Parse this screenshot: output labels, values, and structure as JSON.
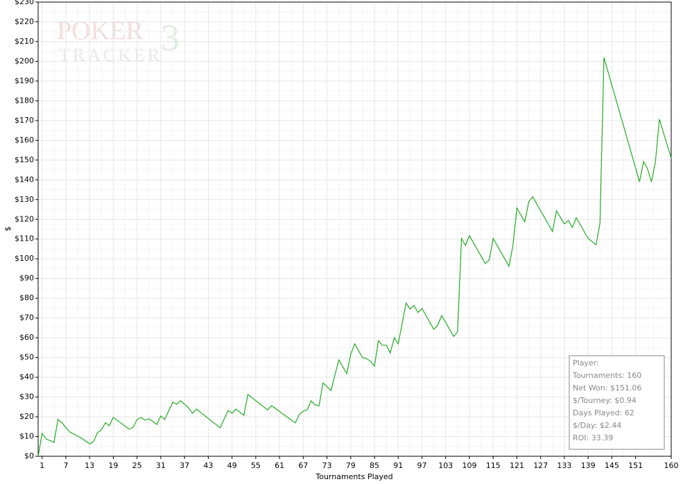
{
  "chart_data": {
    "type": "line",
    "xlabel": "Tournaments Played",
    "ylabel": "$",
    "logo": {
      "top": "POKER",
      "mark": "3",
      "bottom": "TRACKER"
    },
    "xlim": [
      0,
      160
    ],
    "ylim": [
      0,
      230
    ],
    "xticks": [
      1,
      7,
      13,
      19,
      25,
      31,
      37,
      43,
      49,
      55,
      61,
      67,
      73,
      79,
      85,
      91,
      97,
      103,
      109,
      115,
      121,
      127,
      133,
      139,
      145,
      151,
      160
    ],
    "yticks": [
      {
        "value": 0,
        "label": "$0"
      },
      {
        "value": 10,
        "label": "$10"
      },
      {
        "value": 20,
        "label": "$20"
      },
      {
        "value": 30,
        "label": "$30"
      },
      {
        "value": 40,
        "label": "$40"
      },
      {
        "value": 50,
        "label": "$50"
      },
      {
        "value": 60,
        "label": "$60"
      },
      {
        "value": 70,
        "label": "$70"
      },
      {
        "value": 80,
        "label": "$80"
      },
      {
        "value": 90,
        "label": "$90"
      },
      {
        "value": 100,
        "label": "$100"
      },
      {
        "value": 110,
        "label": "$110"
      },
      {
        "value": 120,
        "label": "$120"
      },
      {
        "value": 130,
        "label": "$130"
      },
      {
        "value": 140,
        "label": "$140"
      },
      {
        "value": 150,
        "label": "$150"
      },
      {
        "value": 160,
        "label": "$160"
      },
      {
        "value": 170,
        "label": "$170"
      },
      {
        "value": 180,
        "label": "$180"
      },
      {
        "value": 190,
        "label": "$190"
      },
      {
        "value": 200,
        "label": "$200"
      },
      {
        "value": 210,
        "label": "$210"
      },
      {
        "value": 220,
        "label": "$220"
      },
      {
        "value": 230,
        "label": "$230"
      }
    ],
    "grid": true,
    "x": [
      0,
      1,
      2,
      4,
      5,
      6,
      8,
      11,
      13,
      14,
      15,
      16,
      17,
      18,
      19,
      23,
      24,
      25,
      26,
      27,
      28,
      29,
      30,
      31,
      32,
      34,
      35,
      36,
      38,
      39,
      40,
      46,
      48,
      49,
      50,
      52,
      53,
      58,
      59,
      65,
      66,
      67,
      68,
      69,
      70,
      71,
      72,
      74,
      76,
      78,
      79,
      80,
      82,
      83,
      84,
      85,
      86,
      87,
      88,
      89,
      90,
      91,
      93,
      94,
      95,
      96,
      97,
      100,
      101,
      102,
      105,
      106,
      107,
      108,
      109,
      113,
      114,
      115,
      119,
      120,
      121,
      123,
      124,
      125,
      130,
      131,
      133,
      134,
      135,
      136,
      139,
      141,
      142,
      143,
      152,
      153,
      154,
      155,
      156,
      157,
      160
    ],
    "series": [
      {
        "color": "#22aa22",
        "values": [
          0,
          11.6,
          8.8,
          7,
          18.6,
          17,
          12.3,
          9.1,
          6.3,
          7.4,
          12,
          13.4,
          17,
          15.5,
          19.7,
          13.7,
          14.7,
          18.6,
          19.7,
          18.3,
          19,
          17.6,
          16.1,
          20.4,
          18.6,
          27.4,
          26.3,
          28.1,
          24.6,
          21.8,
          23.9,
          14.4,
          23.2,
          21.8,
          23.9,
          20.7,
          31.3,
          23.5,
          25.6,
          16.9,
          21.1,
          22.8,
          23.5,
          28.1,
          26,
          25.6,
          37.2,
          33.3,
          48.8,
          41.8,
          51.6,
          56.9,
          49.9,
          49.5,
          48.1,
          45.6,
          58.6,
          56.2,
          56.2,
          52.3,
          60,
          56.9,
          77.6,
          74.5,
          76.3,
          72.8,
          74.9,
          64.3,
          66.4,
          71.3,
          60.7,
          62.9,
          110.3,
          106.8,
          111.7,
          97.6,
          99.4,
          110.3,
          96.2,
          106.8,
          125.7,
          118.7,
          128.9,
          131.4,
          113.8,
          124.3,
          117.7,
          119.4,
          115.9,
          120.8,
          110.3,
          107.1,
          118,
          201.9,
          139,
          149.2,
          145.7,
          139,
          148.9,
          170.7,
          151
        ]
      }
    ],
    "stats": [
      "Player:",
      "Tournaments: 160",
      "Net Won: $151.06",
      "$/Tourney: $0.94",
      "Days Played: 62",
      "$/Day: $2.44",
      "ROI: 33.39"
    ]
  }
}
